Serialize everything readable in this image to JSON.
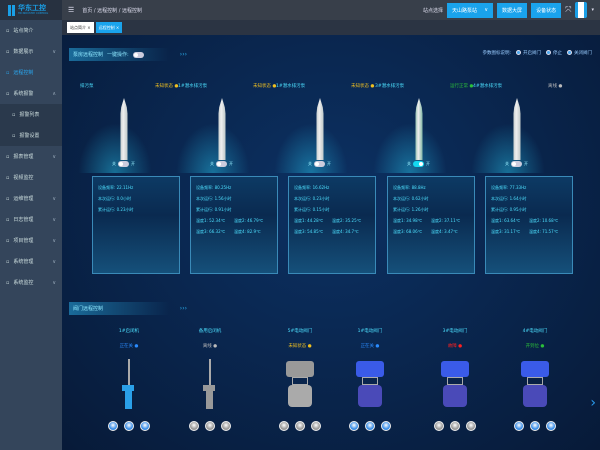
{
  "logo": {
    "title": "华东工控",
    "subtitle": "HD INDUSTRY CONTROL"
  },
  "header": {
    "breadcrumb": "首页 / 远程控制 / 远程控制",
    "site_label": "站点选择",
    "site_value": "天山路泵站",
    "buttons": [
      "数据大屏",
      "设备状态"
    ]
  },
  "tabs": [
    "站点简介 ×",
    "远程控制 ×"
  ],
  "sidebar": [
    {
      "label": "站点简介",
      "icon": "home-icon"
    },
    {
      "label": "数据展示",
      "icon": "chart-icon",
      "chev": "∨"
    },
    {
      "label": "远程控制",
      "icon": "control-icon",
      "active": true
    },
    {
      "label": "系统报警",
      "icon": "bell-icon",
      "chev": "∧"
    },
    {
      "label": "报警列表",
      "icon": "list-icon",
      "sub": true
    },
    {
      "label": "报警设置",
      "icon": "setting-icon",
      "sub": true
    },
    {
      "label": "报表管理",
      "icon": "report-icon",
      "chev": "∨"
    },
    {
      "label": "视频监控",
      "icon": "video-icon"
    },
    {
      "label": "运维管理",
      "icon": "maintenance-icon",
      "chev": "∨"
    },
    {
      "label": "日志管理",
      "icon": "log-icon",
      "chev": "∨"
    },
    {
      "label": "项目管理",
      "icon": "project-icon",
      "chev": "∨"
    },
    {
      "label": "系统管理",
      "icon": "gear-icon",
      "chev": "∨"
    },
    {
      "label": "系统监控",
      "icon": "monitor-icon",
      "chev": "∨"
    }
  ],
  "pump_section": {
    "title": "泵房远程控制",
    "one_key": "一键操作:"
  },
  "legend": {
    "title": "参数图标说明:",
    "items": [
      "开启阀门",
      "停止",
      "关闭阀门"
    ]
  },
  "switch_labels": {
    "off": "关",
    "on": "开"
  },
  "pumps": [
    {
      "name": "排污泵",
      "status": "未知状态",
      "status_color": "#f0c020",
      "on": false,
      "color": "#9aa",
      "lines": [
        "设备频率: 22.11Hz",
        "本次运行: 0.0小时",
        "累计运行: 0.23小时"
      ],
      "temps": []
    },
    {
      "name": "1#潜水排污泵",
      "status": "未知状态",
      "status_color": "#f0c020",
      "on": false,
      "color": "#9aa",
      "lines": [
        "设备频率: 80.25Hz",
        "本次运行: 1.56小时",
        "累计运行: 0.91小时"
      ],
      "temps": [
        "温度1: 52.34℃",
        "温度2: 46.79℃",
        "温度3: 66.32℃",
        "温度4: 82.9℃"
      ]
    },
    {
      "name": "1#潜水排污泵",
      "status": "未知状态",
      "status_color": "#f0c020",
      "on": false,
      "color": "#9aa",
      "lines": [
        "设备频率: 16.62Hz",
        "本次运行: 0.23小时",
        "累计运行: 0.15小时"
      ],
      "temps": [
        "温度1: 44.28℃",
        "温度2: 35.25℃",
        "温度3: 54.85℃",
        "温度4: 34.7℃"
      ]
    },
    {
      "name": "3#潜水排污泵",
      "status": "运行正常",
      "status_color": "#2bbf3a",
      "on": true,
      "color": "#2a8a6a",
      "lines": [
        "设备频率: 88.8Hz",
        "本次运行: 0.62小时",
        "累计运行: 1.26小时"
      ],
      "temps": [
        "温度1: 34.98℃",
        "温度2: 37.11℃",
        "温度3: 68.06℃",
        "温度4: 3.47℃"
      ]
    },
    {
      "name": "4#潜水排污泵",
      "status": "离线",
      "status_color": "#bbbbbb",
      "on": false,
      "color": "#9aa",
      "lines": [
        "设备频率: 77.33Hz",
        "本次运行: 1.64小时",
        "累计运行: 0.95小时"
      ],
      "temps": [
        "温度1: 63.64℃",
        "温度2: 10.68℃",
        "温度3: 31.17℃",
        "温度4: 71.57℃"
      ]
    }
  ],
  "valve_section": {
    "title": "阀门远程控制"
  },
  "valves": [
    {
      "name": "1#启闭机",
      "status": "正在关",
      "status_color": "#2a8cff",
      "type": "gate",
      "color": "#2aa0e8",
      "btn": "#3a8ee8"
    },
    {
      "name": "备用启闭机",
      "status": "离线",
      "status_color": "#bbbbbb",
      "type": "gate",
      "color": "#999",
      "btn": "#999"
    },
    {
      "name": "5#电动阀门",
      "status": "未知状态",
      "status_color": "#f0c020",
      "type": "valve",
      "color": "#999",
      "btn": "#999"
    },
    {
      "name": "1#电动阀门",
      "status": "正在关",
      "status_color": "#2a8cff",
      "type": "valve",
      "color": "#3a5be8",
      "btn": "#3a8ee8"
    },
    {
      "name": "3#电动阀门",
      "status": "故障",
      "status_color": "#ff2020",
      "type": "valve",
      "color": "#3a5be8",
      "btn": "#999"
    },
    {
      "name": "4#电动阀门",
      "status": "开到位",
      "status_color": "#2bbf3a",
      "type": "valve",
      "color": "#3a5be8",
      "btn": "#3a8ee8"
    }
  ]
}
